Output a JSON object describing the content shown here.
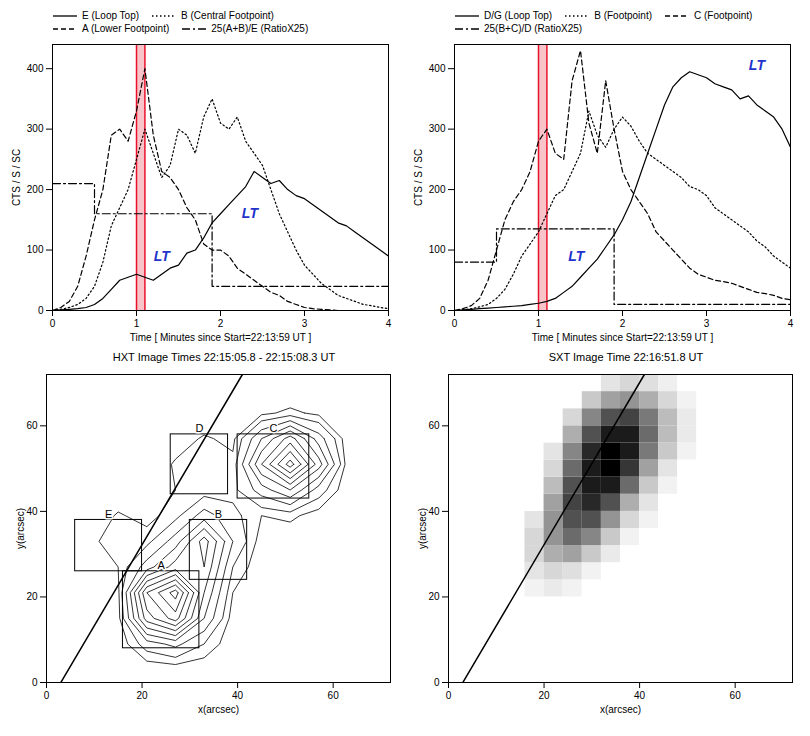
{
  "chart_data": [
    {
      "type": "line",
      "xlabel": "Time [ Minutes since Start=22:13:59 UT ]",
      "ylabel": "CTS / S / SC",
      "xlim": [
        0,
        4
      ],
      "xticks": [
        0,
        1,
        2,
        3,
        4
      ],
      "ylim": [
        0,
        440
      ],
      "yticks": [
        0,
        100,
        200,
        300,
        400
      ],
      "legend": "top",
      "x": [
        0,
        0.1,
        0.2,
        0.3,
        0.4,
        0.5,
        0.6,
        0.7,
        0.8,
        0.9,
        1,
        1.1,
        1.2,
        1.3,
        1.4,
        1.5,
        1.6,
        1.7,
        1.8,
        1.9,
        2,
        2.1,
        2.2,
        2.3,
        2.4,
        2.5,
        2.6,
        2.7,
        2.8,
        2.9,
        3,
        3.1,
        3.2,
        3.3,
        3.4,
        3.5,
        3.6,
        3.7,
        3.8,
        3.9,
        4
      ],
      "series": [
        {
          "name": "E (Loop Top)",
          "color": "#000000",
          "line_style": "solid",
          "values": [
            0,
            1,
            2,
            3,
            5,
            10,
            20,
            35,
            50,
            55,
            60,
            55,
            50,
            60,
            70,
            75,
            95,
            100,
            120,
            145,
            160,
            175,
            190,
            205,
            230,
            220,
            210,
            215,
            200,
            190,
            185,
            175,
            165,
            155,
            145,
            140,
            130,
            120,
            110,
            100,
            90
          ]
        },
        {
          "name": "B (Central Footpoint)",
          "color": "#000000",
          "line_style": "dotted",
          "values": [
            0,
            2,
            5,
            10,
            20,
            40,
            80,
            140,
            170,
            200,
            250,
            300,
            260,
            220,
            240,
            300,
            290,
            260,
            320,
            350,
            310,
            300,
            320,
            280,
            260,
            240,
            200,
            160,
            130,
            100,
            75,
            60,
            45,
            35,
            25,
            20,
            15,
            10,
            8,
            5,
            3
          ]
        },
        {
          "name": "A (Lower Footpoint)",
          "color": "#000000",
          "line_style": "dashed",
          "values": [
            0,
            5,
            15,
            40,
            90,
            150,
            200,
            290,
            300,
            280,
            330,
            400,
            290,
            230,
            220,
            200,
            170,
            150,
            110,
            100,
            100,
            90,
            70,
            60,
            50,
            40,
            30,
            25,
            15,
            10,
            5,
            3,
            2,
            1,
            0,
            0,
            0,
            0,
            0,
            0,
            0
          ]
        },
        {
          "name": "25(A+B)/E (RatioX25)",
          "color": "#000000",
          "line_style": "dashdot",
          "type": "step",
          "x": [
            0,
            0.5,
            1.9,
            4
          ],
          "values": [
            210,
            160,
            40,
            40
          ]
        }
      ],
      "highlight": {
        "x": [
          1.0,
          1.1
        ],
        "color": "#e8102a"
      },
      "annotations": [
        {
          "text": "LT",
          "x": 1.3,
          "y": 90,
          "color": "#2233cc"
        },
        {
          "text": "LT",
          "x": 2.35,
          "y": 160,
          "color": "#2233cc"
        }
      ]
    },
    {
      "type": "line",
      "xlabel": "Time [ Minutes since Start=22:13:59 UT ]",
      "ylabel": "CTS / S / SC",
      "xlim": [
        0,
        4
      ],
      "xticks": [
        0,
        1,
        2,
        3,
        4
      ],
      "ylim": [
        0,
        440
      ],
      "yticks": [
        0,
        100,
        200,
        300,
        400
      ],
      "legend": "top",
      "x": [
        0,
        0.1,
        0.2,
        0.3,
        0.4,
        0.5,
        0.6,
        0.7,
        0.8,
        0.9,
        1,
        1.1,
        1.2,
        1.3,
        1.4,
        1.5,
        1.6,
        1.7,
        1.8,
        1.9,
        2,
        2.1,
        2.2,
        2.3,
        2.4,
        2.5,
        2.6,
        2.7,
        2.8,
        2.9,
        3,
        3.1,
        3.2,
        3.3,
        3.4,
        3.5,
        3.6,
        3.7,
        3.8,
        3.9,
        4
      ],
      "series": [
        {
          "name": "D/G (Loop Top)",
          "color": "#000000",
          "line_style": "solid",
          "values": [
            0,
            1,
            2,
            3,
            4,
            5,
            6,
            7,
            8,
            10,
            12,
            15,
            20,
            30,
            40,
            55,
            70,
            85,
            105,
            125,
            150,
            180,
            220,
            260,
            300,
            340,
            370,
            385,
            395,
            390,
            385,
            375,
            370,
            365,
            350,
            355,
            340,
            330,
            320,
            300,
            270
          ]
        },
        {
          "name": "B (Footpoint)",
          "color": "#000000",
          "line_style": "dotted",
          "values": [
            0,
            1,
            3,
            6,
            10,
            20,
            35,
            60,
            90,
            110,
            130,
            160,
            190,
            200,
            230,
            260,
            330,
            290,
            270,
            300,
            320,
            305,
            280,
            260,
            250,
            240,
            230,
            220,
            205,
            200,
            190,
            170,
            160,
            150,
            140,
            130,
            115,
            105,
            90,
            80,
            70
          ]
        },
        {
          "name": "C (Footpoint)",
          "color": "#000000",
          "line_style": "dashed",
          "values": [
            0,
            3,
            8,
            20,
            50,
            100,
            150,
            180,
            200,
            230,
            280,
            300,
            260,
            250,
            380,
            430,
            310,
            260,
            380,
            300,
            230,
            200,
            180,
            160,
            130,
            115,
            100,
            85,
            70,
            60,
            55,
            50,
            48,
            45,
            40,
            35,
            30,
            28,
            25,
            20,
            18
          ]
        },
        {
          "name": "25(B+C)/D (RatioX25)",
          "color": "#000000",
          "line_style": "dashdot",
          "type": "step",
          "x": [
            0,
            0.5,
            1.9,
            4
          ],
          "values": [
            80,
            135,
            10,
            10
          ]
        }
      ],
      "highlight": {
        "x": [
          1.0,
          1.1
        ],
        "color": "#e8102a"
      },
      "annotations": [
        {
          "text": "LT",
          "x": 1.45,
          "y": 90,
          "color": "#2233cc"
        },
        {
          "text": "LT",
          "x": 3.6,
          "y": 405,
          "color": "#2233cc"
        }
      ]
    },
    {
      "type": "contour",
      "title": "HXT Image Times 22:15:05.8 - 22:15:08.3 UT",
      "xlabel": "x(arcsec)",
      "ylabel": "y(arcsec)",
      "xlim": [
        0,
        72
      ],
      "xticks": [
        0,
        20,
        40,
        60
      ],
      "ylim": [
        0,
        72
      ],
      "yticks": [
        0,
        20,
        40,
        60
      ],
      "color": "#000000",
      "levels": [
        8,
        15,
        25,
        35,
        45,
        55,
        65,
        75,
        85,
        95
      ],
      "values": [
        [
          0,
          0,
          0,
          2,
          3,
          2,
          0,
          0,
          0,
          0,
          0,
          0
        ],
        [
          0,
          0,
          2,
          20,
          28,
          15,
          2,
          0,
          0,
          0,
          0,
          0
        ],
        [
          0,
          0,
          5,
          60,
          80,
          35,
          4,
          0,
          0,
          0,
          0,
          0
        ],
        [
          0,
          0,
          6,
          75,
          100,
          45,
          8,
          0,
          0,
          0,
          0,
          0
        ],
        [
          0,
          2,
          8,
          30,
          50,
          55,
          15,
          2,
          0,
          0,
          0,
          0
        ],
        [
          0,
          5,
          14,
          12,
          30,
          60,
          25,
          4,
          2,
          0,
          0,
          0
        ],
        [
          0,
          2,
          9,
          5,
          12,
          30,
          18,
          8,
          10,
          4,
          0,
          0
        ],
        [
          0,
          0,
          2,
          3,
          8,
          10,
          12,
          30,
          45,
          20,
          2,
          0
        ],
        [
          0,
          0,
          0,
          2,
          9,
          13,
          10,
          55,
          90,
          50,
          4,
          0
        ],
        [
          0,
          0,
          0,
          0,
          4,
          9,
          6,
          35,
          60,
          30,
          3,
          0
        ],
        [
          0,
          0,
          0,
          0,
          0,
          2,
          2,
          6,
          10,
          6,
          0,
          0
        ],
        [
          0,
          0,
          0,
          0,
          0,
          0,
          0,
          0,
          0,
          0,
          0,
          0
        ]
      ],
      "boxes": [
        {
          "label": "A",
          "x": [
            16,
            32
          ],
          "y": [
            8,
            26
          ]
        },
        {
          "label": "B",
          "x": [
            30,
            42
          ],
          "y": [
            24,
            38
          ]
        },
        {
          "label": "C",
          "x": [
            40,
            55
          ],
          "y": [
            43,
            58
          ]
        },
        {
          "label": "D",
          "x": [
            26,
            38
          ],
          "y": [
            44,
            58
          ]
        },
        {
          "label": "E",
          "x": [
            6,
            20
          ],
          "y": [
            26,
            38
          ]
        }
      ],
      "line": {
        "x": [
          3,
          41
        ],
        "y": [
          0,
          72
        ]
      }
    },
    {
      "type": "image",
      "title": "SXT Image Time 22:16:51.8 UT",
      "xlabel": "x(arcsec)",
      "ylabel": "y(arcsec)",
      "xlim": [
        0,
        72
      ],
      "xticks": [
        0,
        20,
        40,
        60
      ],
      "ylim": [
        0,
        72
      ],
      "yticks": [
        0,
        20,
        40,
        60
      ],
      "color": "#000000",
      "values": [
        [
          0,
          0,
          0,
          0,
          0,
          0,
          0,
          0,
          0,
          0,
          0,
          0,
          0,
          0,
          0,
          0,
          0,
          0
        ],
        [
          0,
          0,
          0,
          0,
          0,
          0,
          0,
          0,
          0,
          0,
          0,
          0,
          0,
          0,
          0,
          0,
          0,
          0
        ],
        [
          0,
          0,
          0,
          0,
          0,
          0,
          0,
          0,
          0,
          0,
          0,
          0,
          0,
          0,
          0,
          0,
          0,
          0
        ],
        [
          0,
          0,
          0,
          0,
          0,
          0,
          0,
          0,
          0,
          0,
          0,
          0,
          0,
          0,
          0,
          0,
          0,
          0
        ],
        [
          0,
          0,
          0,
          0,
          0,
          0,
          0,
          0,
          0,
          0,
          0,
          0,
          0,
          0,
          0,
          0,
          0,
          0
        ],
        [
          0,
          0,
          0,
          0,
          5,
          8,
          5,
          0,
          0,
          0,
          0,
          0,
          0,
          0,
          0,
          0,
          0,
          0
        ],
        [
          0,
          0,
          0,
          0,
          10,
          15,
          12,
          5,
          0,
          0,
          0,
          0,
          0,
          0,
          0,
          0,
          0,
          0
        ],
        [
          0,
          0,
          0,
          0,
          15,
          30,
          35,
          20,
          8,
          0,
          0,
          0,
          0,
          0,
          0,
          0,
          0,
          0
        ],
        [
          0,
          0,
          0,
          0,
          15,
          40,
          55,
          45,
          20,
          5,
          0,
          0,
          0,
          0,
          0,
          0,
          0,
          0
        ],
        [
          0,
          0,
          0,
          0,
          10,
          40,
          65,
          65,
          40,
          15,
          5,
          0,
          0,
          0,
          0,
          0,
          0,
          0
        ],
        [
          0,
          0,
          0,
          0,
          0,
          35,
          70,
          80,
          65,
          30,
          10,
          0,
          0,
          0,
          0,
          0,
          0,
          0
        ],
        [
          0,
          0,
          0,
          0,
          0,
          25,
          65,
          85,
          85,
          55,
          20,
          5,
          0,
          0,
          0,
          0,
          0,
          0
        ],
        [
          0,
          0,
          0,
          0,
          0,
          15,
          55,
          85,
          95,
          75,
          35,
          10,
          0,
          0,
          0,
          0,
          0,
          0
        ],
        [
          0,
          0,
          0,
          0,
          0,
          10,
          45,
          80,
          95,
          85,
          50,
          20,
          5,
          0,
          0,
          0,
          0,
          0
        ],
        [
          0,
          0,
          0,
          0,
          0,
          0,
          30,
          65,
          85,
          85,
          55,
          25,
          8,
          0,
          0,
          0,
          0,
          0
        ],
        [
          0,
          0,
          0,
          0,
          0,
          0,
          15,
          45,
          65,
          70,
          50,
          25,
          8,
          0,
          0,
          0,
          0,
          0
        ],
        [
          0,
          0,
          0,
          0,
          0,
          0,
          0,
          20,
          35,
          40,
          30,
          15,
          5,
          0,
          0,
          0,
          0,
          0
        ],
        [
          0,
          0,
          0,
          0,
          0,
          0,
          0,
          0,
          10,
          15,
          12,
          6,
          0,
          0,
          0,
          0,
          0,
          0
        ]
      ],
      "line": {
        "x": [
          3,
          41
        ],
        "y": [
          0,
          72
        ]
      }
    }
  ]
}
